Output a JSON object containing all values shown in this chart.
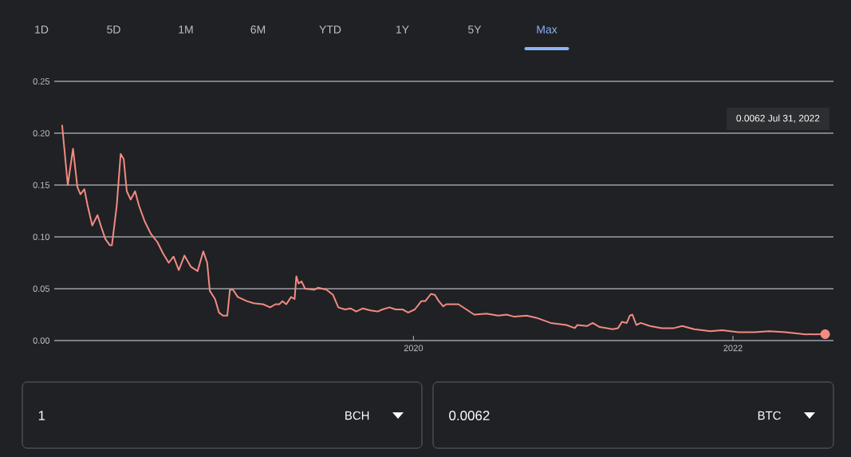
{
  "chart_data": {
    "type": "line",
    "x": [
      "2017-10-19",
      "2017-11-01",
      "2017-11-13",
      "2017-11-23",
      "2017-11-30",
      "2017-12-09",
      "2017-12-16",
      "2017-12-27",
      "2018-01-08",
      "2018-01-17",
      "2018-01-26",
      "2018-02-05",
      "2018-02-10",
      "2018-02-21",
      "2018-03-02",
      "2018-03-09",
      "2018-03-16",
      "2018-03-25",
      "2018-04-04",
      "2018-04-13",
      "2018-04-26",
      "2018-05-10",
      "2018-05-25",
      "2018-06-07",
      "2018-06-20",
      "2018-07-01",
      "2018-07-13",
      "2018-07-26",
      "2018-08-10",
      "2018-08-25",
      "2018-09-07",
      "2018-09-16",
      "2018-09-22",
      "2018-10-04",
      "2018-10-13",
      "2018-10-22",
      "2018-11-01",
      "2018-11-07",
      "2018-11-14",
      "2018-11-25",
      "2018-12-16",
      "2019-01-01",
      "2019-01-22",
      "2019-02-07",
      "2019-02-19",
      "2019-02-28",
      "2019-03-07",
      "2019-03-16",
      "2019-03-27",
      "2019-04-04",
      "2019-04-08",
      "2019-04-13",
      "2019-04-20",
      "2019-04-28",
      "2019-05-19",
      "2019-05-28",
      "2019-06-16",
      "2019-07-01",
      "2019-07-13",
      "2019-07-28",
      "2019-08-10",
      "2019-08-23",
      "2019-09-07",
      "2019-09-25",
      "2019-10-11",
      "2019-10-22",
      "2019-11-07",
      "2019-11-21",
      "2019-12-07",
      "2019-12-20",
      "2020-01-04",
      "2020-01-19",
      "2020-01-28",
      "2020-02-10",
      "2020-02-19",
      "2020-02-28",
      "2020-03-09",
      "2020-03-16",
      "2020-04-13",
      "2020-05-01",
      "2020-05-19",
      "2020-06-16",
      "2020-07-13",
      "2020-08-01",
      "2020-08-19",
      "2020-09-16",
      "2020-10-08",
      "2020-11-10",
      "2020-12-16",
      "2021-01-04",
      "2021-01-10",
      "2021-02-01",
      "2021-02-14",
      "2021-03-02",
      "2021-04-01",
      "2021-04-13",
      "2021-04-22",
      "2021-05-03",
      "2021-05-10",
      "2021-05-16",
      "2021-05-25",
      "2021-06-04",
      "2021-06-25",
      "2021-07-22",
      "2021-08-19",
      "2021-09-07",
      "2021-10-04",
      "2021-11-10",
      "2021-12-07",
      "2022-01-13",
      "2022-02-19",
      "2022-03-25",
      "2022-05-01",
      "2022-06-16",
      "2022-07-31"
    ],
    "series": [
      {
        "color": "#f28b82",
        "values": [
          0.208,
          0.15,
          0.185,
          0.148,
          0.141,
          0.146,
          0.131,
          0.111,
          0.121,
          0.109,
          0.098,
          0.092,
          0.092,
          0.13,
          0.18,
          0.175,
          0.144,
          0.136,
          0.144,
          0.13,
          0.115,
          0.103,
          0.095,
          0.084,
          0.075,
          0.081,
          0.068,
          0.082,
          0.071,
          0.067,
          0.086,
          0.075,
          0.048,
          0.04,
          0.027,
          0.024,
          0.024,
          0.049,
          0.049,
          0.042,
          0.038,
          0.036,
          0.035,
          0.032,
          0.035,
          0.035,
          0.038,
          0.035,
          0.042,
          0.04,
          0.062,
          0.055,
          0.057,
          0.05,
          0.049,
          0.051,
          0.049,
          0.044,
          0.032,
          0.03,
          0.031,
          0.028,
          0.031,
          0.029,
          0.028,
          0.03,
          0.032,
          0.03,
          0.03,
          0.027,
          0.03,
          0.038,
          0.038,
          0.045,
          0.044,
          0.038,
          0.033,
          0.035,
          0.035,
          0.03,
          0.025,
          0.026,
          0.024,
          0.025,
          0.023,
          0.024,
          0.022,
          0.017,
          0.015,
          0.012,
          0.015,
          0.014,
          0.017,
          0.013,
          0.011,
          0.012,
          0.018,
          0.017,
          0.024,
          0.025,
          0.015,
          0.017,
          0.014,
          0.012,
          0.012,
          0.014,
          0.011,
          0.009,
          0.01,
          0.008,
          0.008,
          0.009,
          0.008,
          0.006,
          0.0062
        ]
      }
    ],
    "xlim": [
      "2017-10-01",
      "2022-08-19"
    ],
    "xticks": [
      {
        "value": "2020-01-01",
        "label": "2020"
      },
      {
        "value": "2022-01-01",
        "label": "2022"
      }
    ],
    "ylim": [
      0,
      0.25
    ],
    "yticks": [
      {
        "value": 0,
        "label": "0.00"
      },
      {
        "value": 0.05,
        "label": "0.05"
      },
      {
        "value": 0.1,
        "label": "0.10"
      },
      {
        "value": 0.15,
        "label": "0.15"
      },
      {
        "value": 0.2,
        "label": "0.20"
      },
      {
        "value": 0.25,
        "label": "0.25"
      }
    ],
    "grid": "y",
    "marker": "none",
    "line_style": "solid",
    "annotations": [
      "1D",
      "5D",
      "1M",
      "6M",
      "YTD",
      "1Y",
      "5Y",
      "Max",
      "0.0062 Jul 31, 2022",
      "1",
      "BCH",
      "0.0062",
      "BTC"
    ]
  }
}
